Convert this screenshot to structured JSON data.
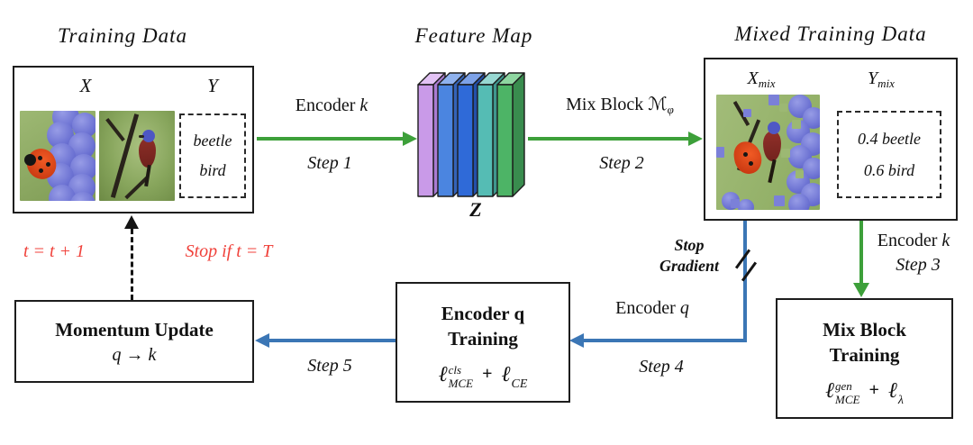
{
  "colors": {
    "green": "#3da03a",
    "blue": "#3b76b5",
    "red": "#f0423b",
    "line": "#1c1c1c"
  },
  "training_data": {
    "title": "Training Data",
    "x_label": "X",
    "y_label": "Y",
    "labels": [
      "beetle",
      "bird"
    ]
  },
  "feature_map": {
    "title": "Feature Map",
    "z_label": "Z",
    "slabs": [
      {
        "front": "#c99ae8",
        "top": "#e2c2f4",
        "side": "#a97bd2"
      },
      {
        "front": "#4b85e0",
        "top": "#8fb2ee",
        "side": "#3463b8"
      },
      {
        "front": "#2f6ad8",
        "top": "#7da2e8",
        "side": "#2450a8"
      },
      {
        "front": "#55bcb4",
        "top": "#97d8d2",
        "side": "#3f968e"
      },
      {
        "front": "#4db466",
        "top": "#8ed6a0",
        "side": "#398c4e"
      }
    ]
  },
  "mixed_data": {
    "title": "Mixed Training Data",
    "x_label": "X",
    "x_sub": "mix",
    "y_label": "Y",
    "y_sub": "mix",
    "labels": [
      "0.4 beetle",
      "0.6 bird"
    ]
  },
  "arrows": {
    "step1": {
      "word": "Encoder",
      "var": "k",
      "step": "Step 1"
    },
    "step2": {
      "word": "Mix Block",
      "script_m": "ℳ",
      "sub": "φ",
      "step": "Step 2"
    },
    "step3": {
      "word": "Encoder",
      "var": "k",
      "step": "Step 3"
    },
    "step4": {
      "word": "Encoder",
      "var": "q",
      "step": "Step 4"
    },
    "step5": {
      "step": "Step 5"
    },
    "stop_gradient": {
      "line1": "Stop",
      "line2": "Gradient"
    }
  },
  "boxes": {
    "mix_block_training": {
      "title1": "Mix Block",
      "title2": "Training",
      "ell": "ℓ",
      "sup": "gen",
      "sub": "MCE",
      "plus": "+",
      "ell2": "ℓ",
      "sub2": "λ"
    },
    "encoder_q_training": {
      "title1": "Encoder q",
      "title2": "Training",
      "ell": "ℓ",
      "sup": "cls",
      "sub": "MCE",
      "plus": "+",
      "ell2": "ℓ",
      "sub2": "CE"
    },
    "momentum_update": {
      "title": "Momentum Update",
      "formula": "q → k"
    }
  },
  "loop": {
    "increment": "t = t + 1",
    "stop_condition": "Stop if t = T"
  }
}
